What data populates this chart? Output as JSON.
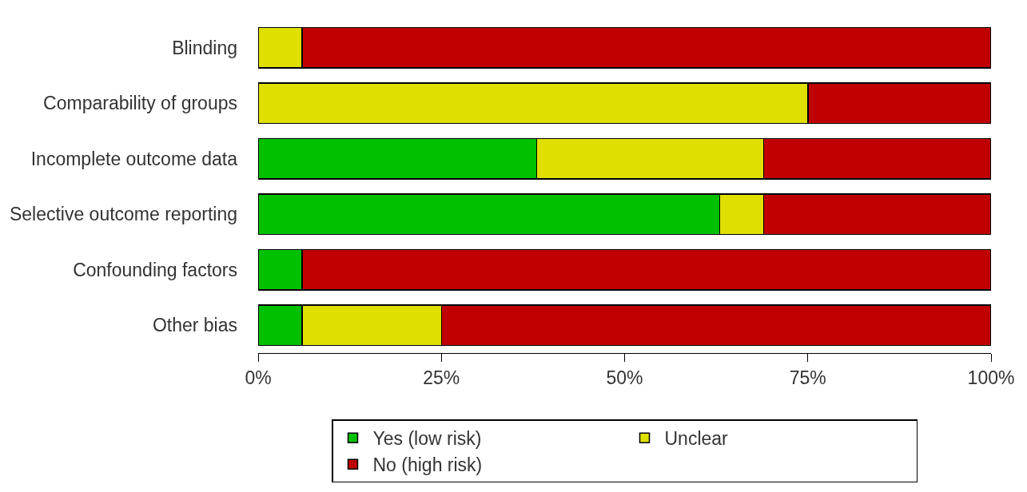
{
  "chart_data": {
    "type": "bar",
    "orientation": "horizontal",
    "stacked": true,
    "categories": [
      "Blinding",
      "Comparability of groups",
      "Incomplete outcome data",
      "Selective outcome reporting",
      "Confounding factors",
      "Other bias"
    ],
    "series": [
      {
        "name": "Yes (low risk)",
        "color": "#00c000",
        "values": [
          0,
          0,
          38,
          63,
          6,
          6
        ]
      },
      {
        "name": "Unclear",
        "color": "#e0e000",
        "values": [
          6,
          75,
          31,
          6,
          0,
          19
        ]
      },
      {
        "name": "No (high risk)",
        "color": "#c00000",
        "values": [
          94,
          25,
          31,
          31,
          94,
          75
        ]
      }
    ],
    "xlim": [
      0,
      100
    ],
    "xticks": [
      {
        "value": 0,
        "label": "0%"
      },
      {
        "value": 25,
        "label": "25%"
      },
      {
        "value": 50,
        "label": "50%"
      },
      {
        "value": 75,
        "label": "75%"
      },
      {
        "value": 100,
        "label": "100%"
      }
    ],
    "legend": "bottom"
  }
}
